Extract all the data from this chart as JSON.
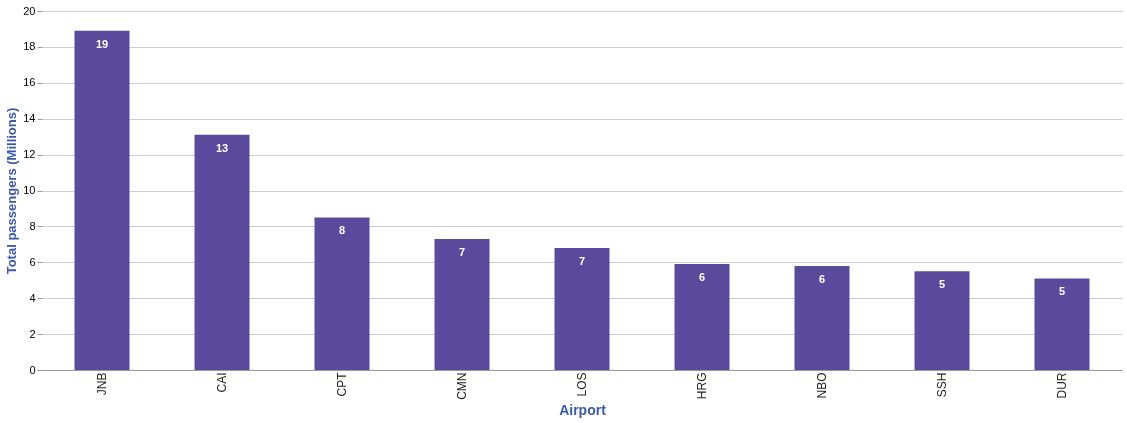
{
  "chart_data": {
    "type": "bar",
    "xlabel": "Airport",
    "ylabel": "Total passengers (Millions)",
    "categories": [
      "JNB",
      "CAI",
      "CPT",
      "CMN",
      "LOS",
      "HRG",
      "NBO",
      "SSH",
      "DUR"
    ],
    "values": [
      18.9,
      13.1,
      8.5,
      7.3,
      6.8,
      5.9,
      5.8,
      5.5,
      5.1
    ],
    "value_labels": [
      "19",
      "13",
      "8",
      "7",
      "7",
      "6",
      "6",
      "5",
      "5"
    ],
    "color": "#5a4a9c",
    "ylim": [
      0,
      20
    ],
    "yticks": [
      0,
      2,
      4,
      6,
      8,
      10,
      12,
      14,
      16,
      18,
      20
    ],
    "grid": "y"
  }
}
